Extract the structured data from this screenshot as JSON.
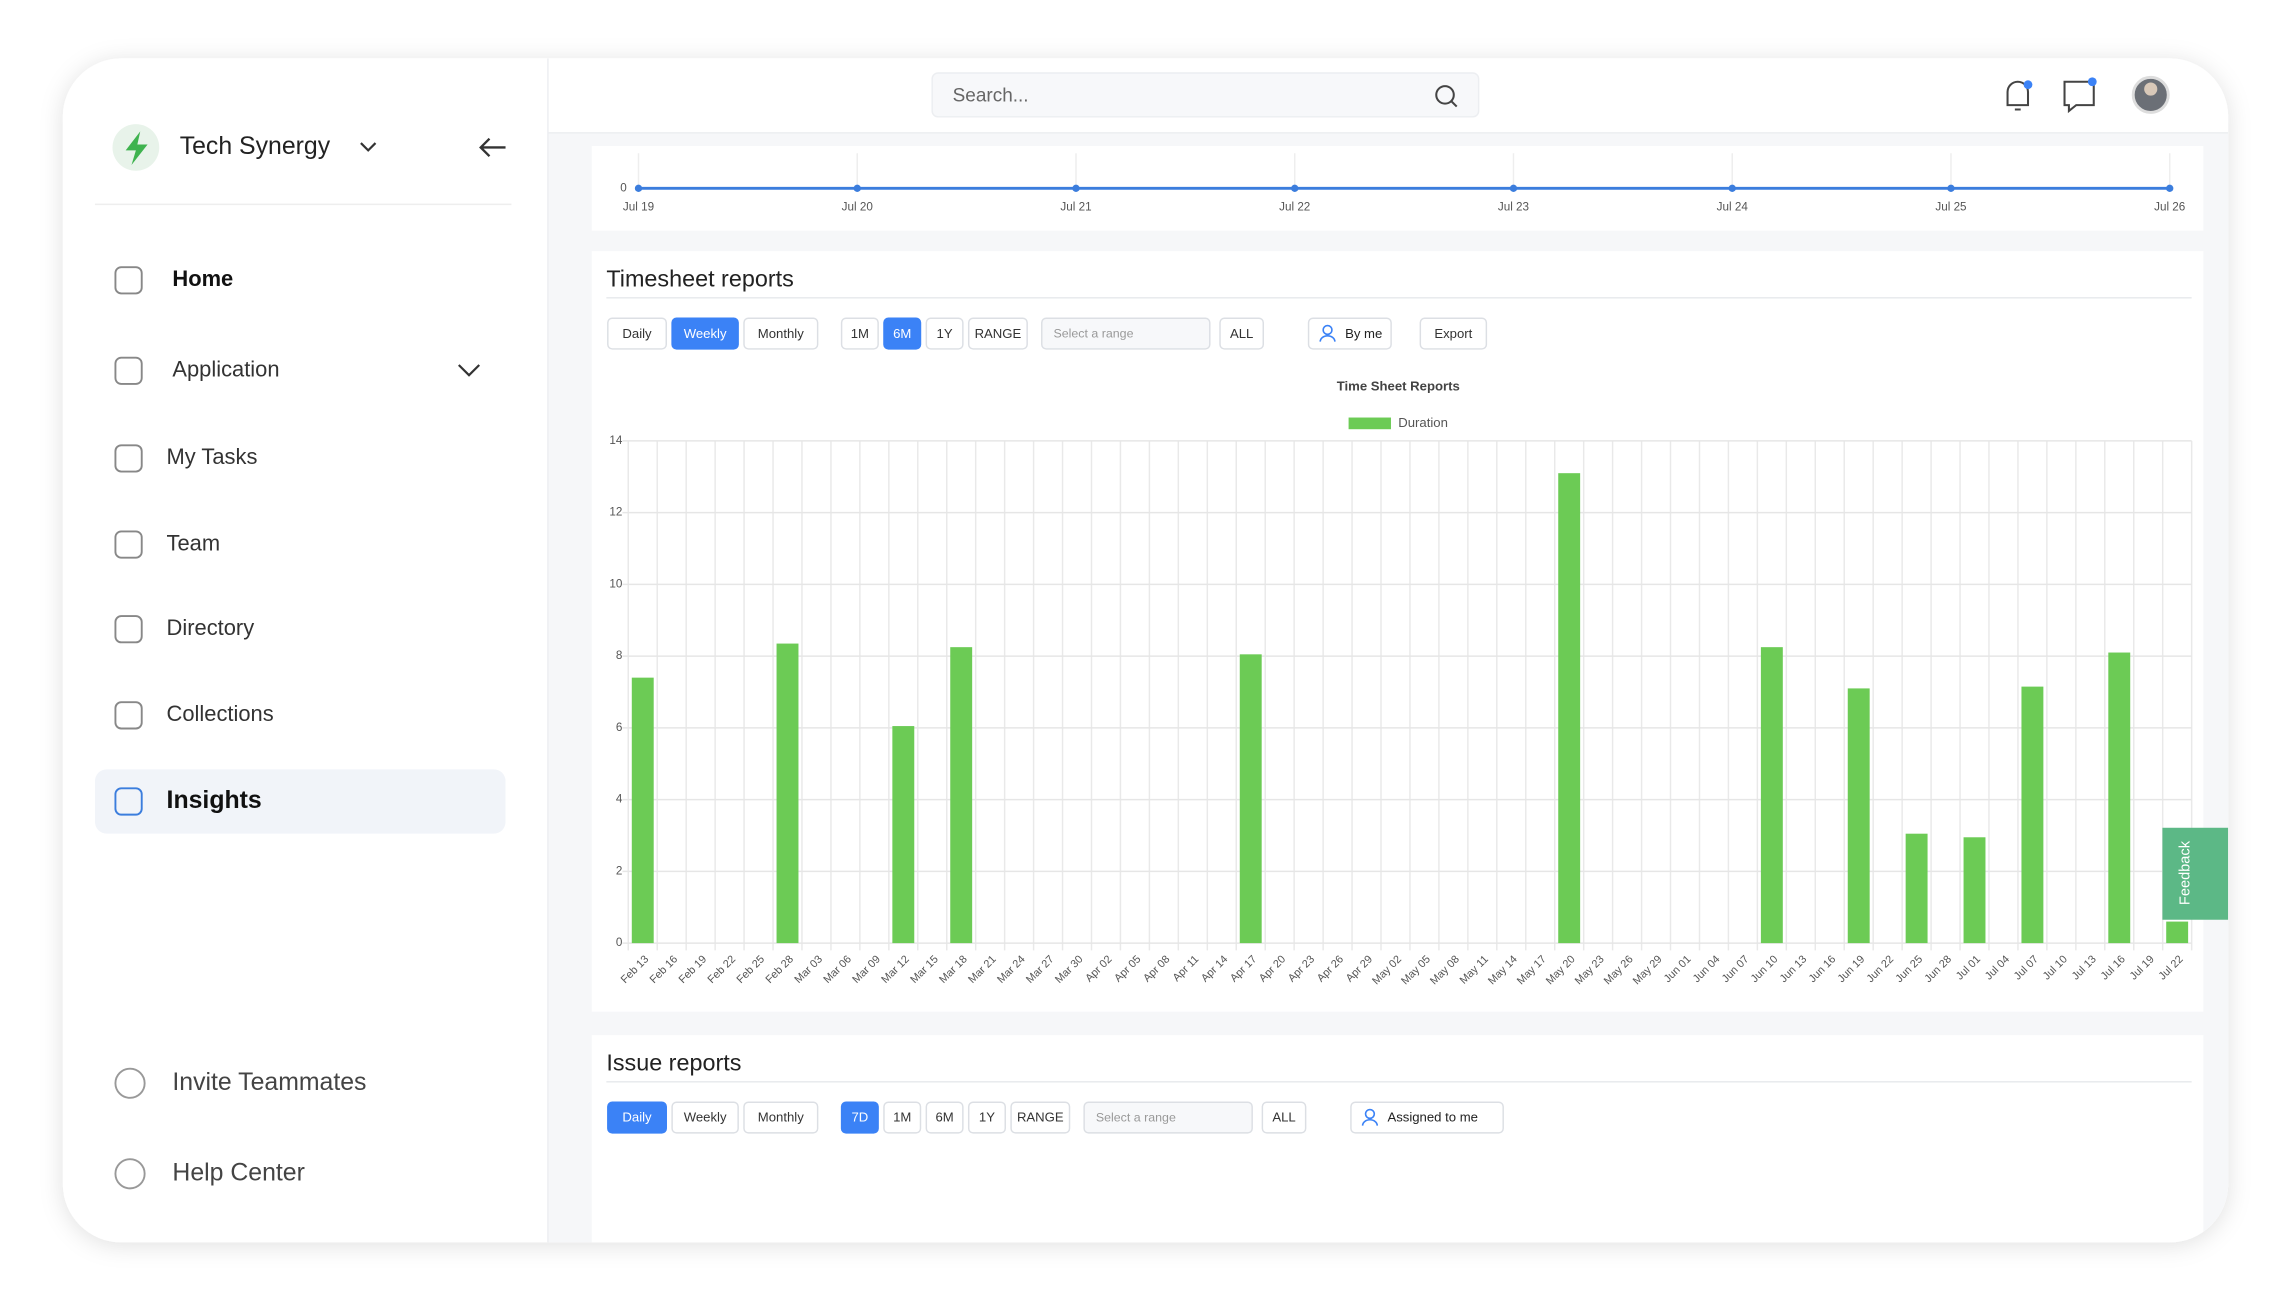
{
  "sidebar": {
    "workspace": "Tech Synergy",
    "nav": [
      "Home",
      "Application",
      "My Tasks",
      "Team",
      "Directory",
      "Collections",
      "Insights"
    ],
    "selected": "Insights",
    "footer": [
      "Invite Teammates",
      "Help Center"
    ]
  },
  "header": {
    "search_placeholder": "Search..."
  },
  "chart_data": [
    {
      "type": "line",
      "categories": [
        "Jul 19",
        "Jul 20",
        "Jul 21",
        "Jul 22",
        "Jul 23",
        "Jul 24",
        "Jul 25",
        "Jul 26"
      ],
      "series": [
        {
          "color": "#3b7ddd",
          "values": [
            0,
            0,
            0,
            0,
            0,
            0,
            0,
            0
          ]
        }
      ],
      "ylim": [
        0,
        1
      ],
      "yticks": [
        0
      ]
    },
    {
      "type": "bar",
      "title": "Time Sheet Reports",
      "legend": "top",
      "grid": true,
      "categories": [
        "Feb 13",
        "Feb 16",
        "Feb 19",
        "Feb 22",
        "Feb 25",
        "Feb 28",
        "Mar 03",
        "Mar 06",
        "Mar 09",
        "Mar 12",
        "Mar 15",
        "Mar 18",
        "Mar 21",
        "Mar 24",
        "Mar 27",
        "Mar 30",
        "Apr 02",
        "Apr 05",
        "Apr 08",
        "Apr 11",
        "Apr 14",
        "Apr 17",
        "Apr 20",
        "Apr 23",
        "Apr 26",
        "Apr 29",
        "May 02",
        "May 05",
        "May 08",
        "May 11",
        "May 14",
        "May 17",
        "May 20",
        "May 23",
        "May 26",
        "May 29",
        "Jun 01",
        "Jun 04",
        "Jun 07",
        "Jun 10",
        "Jun 13",
        "Jun 16",
        "Jun 19",
        "Jun 22",
        "Jun 25",
        "Jun 28",
        "Jul 01",
        "Jul 04",
        "Jul 07",
        "Jul 10",
        "Jul 13",
        "Jul 16",
        "Jul 19",
        "Jul 22"
      ],
      "series": [
        {
          "name": "Duration",
          "color": "#6ccb55",
          "values": [
            7.4,
            0,
            0,
            0,
            0,
            8.35,
            0,
            0,
            0,
            6.05,
            0,
            8.25,
            0,
            0,
            0,
            0,
            0,
            0,
            0,
            0,
            0,
            8.05,
            0,
            0,
            0,
            0,
            0,
            0,
            0,
            0,
            0,
            0,
            13.1,
            0,
            0,
            0,
            0,
            0,
            0,
            8.25,
            0,
            0,
            7.1,
            0,
            3.05,
            0,
            2.95,
            0,
            7.15,
            0,
            0,
            8.1,
            0,
            0.6
          ]
        }
      ],
      "ylim": [
        0,
        14
      ],
      "yticks": [
        0,
        2,
        4,
        6,
        8,
        10,
        12,
        14
      ]
    }
  ],
  "timesheet": {
    "title": "Timesheet reports",
    "periods": [
      "Daily",
      "Weekly",
      "Monthly"
    ],
    "selected_period": "Weekly",
    "ranges": [
      "1M",
      "6M",
      "1Y",
      "RANGE"
    ],
    "selected_range": "6M",
    "range_placeholder": "Select a range",
    "all": "ALL",
    "filter": "By me",
    "export": "Export"
  },
  "issues": {
    "title": "Issue reports",
    "periods": [
      "Daily",
      "Weekly",
      "Monthly"
    ],
    "selected_period": "Daily",
    "ranges": [
      "7D",
      "1M",
      "6M",
      "1Y",
      "RANGE"
    ],
    "selected_range": "7D",
    "range_placeholder": "Select a range",
    "all": "ALL",
    "filter": "Assigned to me"
  },
  "feedback": "Feedback"
}
